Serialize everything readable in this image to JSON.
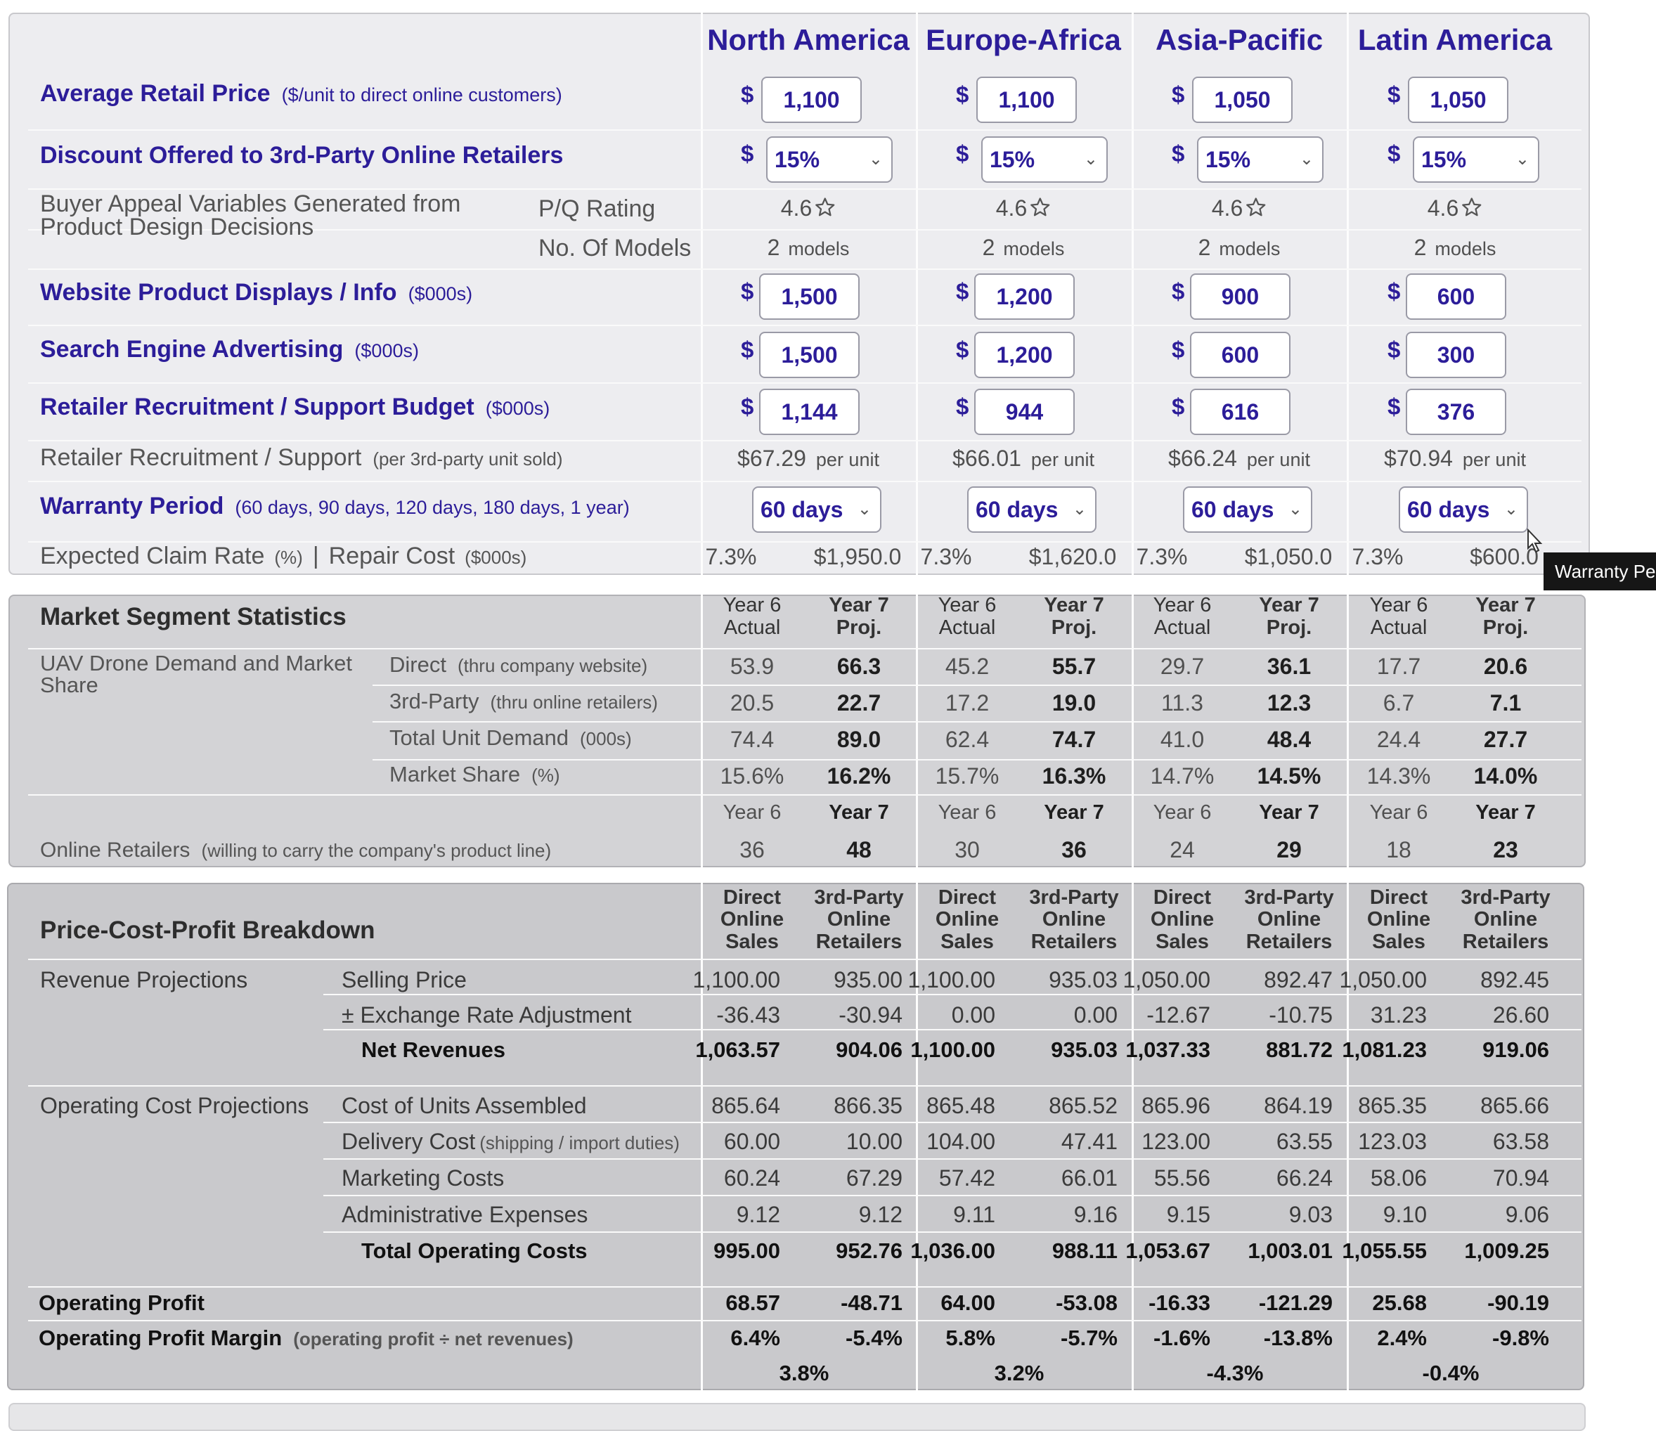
{
  "regions": [
    "North America",
    "Europe-Africa",
    "Asia-Pacific",
    "Latin America"
  ],
  "currency": "$",
  "decisions": {
    "avg_price": {
      "label": "Average Retail Price",
      "note": "($/unit to direct online customers)",
      "values": [
        "1,100",
        "1,100",
        "1,050",
        "1,050"
      ]
    },
    "discount": {
      "label": "Discount Offered to 3rd-Party Online Retailers",
      "values": [
        "15%",
        "15%",
        "15%",
        "15%"
      ]
    },
    "buyer_appeal": {
      "label": "Buyer Appeal Variables Generated from Product Design Decisions",
      "pq_label": "P/Q Rating",
      "models_label": "No. Of Models",
      "pq": [
        "4.6",
        "4.6",
        "4.6",
        "4.6"
      ],
      "models": [
        "2",
        "2",
        "2",
        "2"
      ],
      "models_unit": "models"
    },
    "website": {
      "label": "Website Product Displays / Info",
      "note": "($000s)",
      "values": [
        "1,500",
        "1,200",
        "900",
        "600"
      ]
    },
    "search": {
      "label": "Search Engine Advertising",
      "note": "($000s)",
      "values": [
        "1,500",
        "1,200",
        "600",
        "300"
      ]
    },
    "retailer_budget": {
      "label": "Retailer Recruitment / Support Budget",
      "note": "($000s)",
      "values": [
        "1,144",
        "944",
        "616",
        "376"
      ]
    },
    "retailer_support": {
      "label": "Retailer Recruitment / Support",
      "note": "(per 3rd-party unit sold)",
      "values": [
        "$67.29",
        "$66.01",
        "$66.24",
        "$70.94"
      ],
      "unit": "per unit"
    },
    "warranty": {
      "label": "Warranty Period",
      "note": "(60 days, 90 days, 120 days, 180 days, 1 year)",
      "values": [
        "60 days",
        "60 days",
        "60 days",
        "60 days"
      ]
    },
    "claims": {
      "label_a": "Expected Claim Rate",
      "note_a": "(%)",
      "sep": "|",
      "label_b": "Repair Cost",
      "note_b": "($000s)",
      "rates": [
        "7.3%",
        "7.3%",
        "7.3%",
        "7.3%"
      ],
      "costs": [
        "$1,950.0",
        "$1,620.0",
        "$1,050.0",
        "$600.0"
      ]
    }
  },
  "tooltip": "Warranty Period",
  "segment": {
    "title": "Market Segment Statistics",
    "group_label": "UAV Drone Demand and Market Share",
    "col_headers": [
      "Year 6 Actual",
      "Year 7 Proj."
    ],
    "rows": [
      {
        "label": "Direct",
        "note": "(thru company website)",
        "values": [
          "53.9",
          "66.3",
          "45.2",
          "55.7",
          "29.7",
          "36.1",
          "17.7",
          "20.6"
        ]
      },
      {
        "label": "3rd-Party",
        "note": "(thru online retailers)",
        "values": [
          "20.5",
          "22.7",
          "17.2",
          "19.0",
          "11.3",
          "12.3",
          "6.7",
          "7.1"
        ]
      },
      {
        "label": "Total Unit Demand",
        "note": "(000s)",
        "values": [
          "74.4",
          "89.0",
          "62.4",
          "74.7",
          "41.0",
          "48.4",
          "24.4",
          "27.7"
        ]
      },
      {
        "label": "Market Share",
        "note": "(%)",
        "values": [
          "15.6%",
          "16.2%",
          "15.7%",
          "16.3%",
          "14.7%",
          "14.5%",
          "14.3%",
          "14.0%"
        ]
      }
    ],
    "year_headers": [
      "Year 6",
      "Year 7"
    ],
    "retailers": {
      "label": "Online Retailers",
      "note": "(willing to carry the company's product line)",
      "values": [
        "36",
        "48",
        "30",
        "36",
        "24",
        "29",
        "18",
        "23"
      ]
    }
  },
  "pcp": {
    "title": "Price-Cost-Profit Breakdown",
    "col_headers": [
      "Direct Online Sales",
      "3rd-Party Online Retailers"
    ],
    "revenue_label": "Revenue Projections",
    "revenue_rows": [
      {
        "label": "Selling Price",
        "bold": false,
        "values": [
          "1,100.00",
          "935.00",
          "1,100.00",
          "935.03",
          "1,050.00",
          "892.47",
          "1,050.00",
          "892.45"
        ]
      },
      {
        "label": "± Exchange Rate Adjustment",
        "bold": false,
        "values": [
          "-36.43",
          "-30.94",
          "0.00",
          "0.00",
          "-12.67",
          "-10.75",
          "31.23",
          "26.60"
        ]
      },
      {
        "label": "Net Revenues",
        "bold": true,
        "values": [
          "1,063.57",
          "904.06",
          "1,100.00",
          "935.03",
          "1,037.33",
          "881.72",
          "1,081.23",
          "919.06"
        ]
      }
    ],
    "cost_label": "Operating Cost Projections",
    "cost_rows": [
      {
        "label": "Cost of Units Assembled",
        "bold": false,
        "values": [
          "865.64",
          "866.35",
          "865.48",
          "865.52",
          "865.96",
          "864.19",
          "865.35",
          "865.66"
        ]
      },
      {
        "label": "Delivery Cost",
        "note": "(shipping / import duties)",
        "bold": false,
        "values": [
          "60.00",
          "10.00",
          "104.00",
          "47.41",
          "123.00",
          "63.55",
          "123.03",
          "63.58"
        ]
      },
      {
        "label": "Marketing Costs",
        "bold": false,
        "values": [
          "60.24",
          "67.29",
          "57.42",
          "66.01",
          "55.56",
          "66.24",
          "58.06",
          "70.94"
        ]
      },
      {
        "label": "Administrative Expenses",
        "bold": false,
        "values": [
          "9.12",
          "9.12",
          "9.11",
          "9.16",
          "9.15",
          "9.03",
          "9.10",
          "9.06"
        ]
      },
      {
        "label": "Total Operating Costs",
        "bold": true,
        "values": [
          "995.00",
          "952.76",
          "1,036.00",
          "988.11",
          "1,053.67",
          "1,003.01",
          "1,055.55",
          "1,009.25"
        ]
      }
    ],
    "op_profit": {
      "label": "Operating Profit",
      "values": [
        "68.57",
        "-48.71",
        "64.00",
        "-53.08",
        "-16.33",
        "-121.29",
        "25.68",
        "-90.19"
      ]
    },
    "op_margin": {
      "label": "Operating Profit Margin",
      "note": "(operating profit ÷ net revenues)",
      "values": [
        "6.4%",
        "-5.4%",
        "5.8%",
        "-5.7%",
        "-1.6%",
        "-13.8%",
        "2.4%",
        "-9.8%"
      ]
    },
    "combined_margin": [
      "3.8%",
      "3.2%",
      "-4.3%",
      "-0.4%"
    ]
  },
  "colors": {
    "accent": "#2c1d99",
    "panel1": "#ededf0",
    "panel2": "#d3d3d6",
    "panel3": "#c9c9cc"
  }
}
